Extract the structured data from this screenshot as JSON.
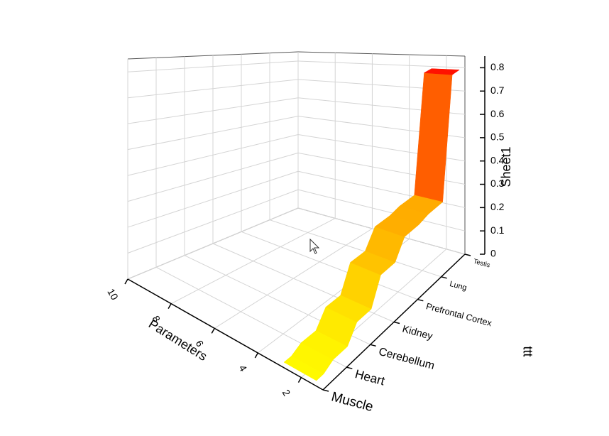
{
  "chart_data": {
    "type": "ribbon3d",
    "x_label": "Parameters",
    "y_label": "ttt",
    "z_label": "Sheet1",
    "xlim": [
      1,
      10
    ],
    "xticks": [
      2,
      4,
      6,
      8,
      10
    ],
    "categories": [
      "Muscle",
      "Heart",
      "Cerebellum",
      "Kidney",
      "Prefrontal Cortex",
      "Lung",
      "Testis"
    ],
    "values": [
      0.02,
      0.04,
      0.1,
      0.2,
      0.27,
      0.28,
      0.79
    ],
    "zlim": [
      0,
      0.85
    ],
    "zticks": [
      0,
      0.1,
      0.2,
      0.3,
      0.4,
      0.5,
      0.6,
      0.7,
      0.8
    ],
    "colormap": [
      "#ffff00",
      "#ff0000"
    ],
    "grid": true
  }
}
